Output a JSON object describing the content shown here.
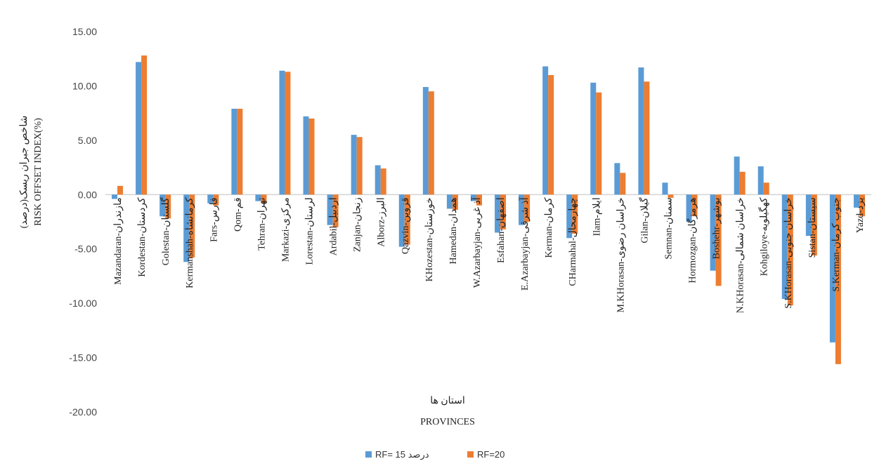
{
  "chart_data": {
    "type": "bar",
    "ylabel_fa": "شاخص جبران ریسک(درصد)",
    "ylabel_en": "RISK OFFSET INDEX(%)",
    "xlabel_fa": "استان ها",
    "xlabel_en": "PROVINCES",
    "ylim": [
      -20,
      15
    ],
    "yticks": [
      "15.00",
      "10.00",
      "5.00",
      "0.00",
      "-5.00",
      "-10.00",
      "-15.00",
      "-20.00"
    ],
    "legend_position": "bottom",
    "categories": [
      "Mazandaran-مازندران",
      "Kordestan-کردستان",
      "Golestan-گلستان",
      "Kermanshah-کرمانشاه",
      "Fars-فارس",
      "Qom-قم",
      "Tehran-تهران",
      "Markazi-مرکزی",
      "Lorestan-لرستان",
      "Ardabil-اردبیل",
      "Zanjan-زنجان",
      "Alborz-البرز",
      "Qazvin-قزوین",
      "KHozestan-خوزستان",
      "Hamedan-همدان",
      "W.Azarbayjan-آذ غربی",
      "Esfahan-اصفهان",
      "E.Azarbayjan-آذ شرقی",
      "Kerman-کرمان",
      "CHarmahal-چهارمحال",
      "Ilam-ایلام",
      "M.KHorasan-خراسان رضوی",
      "Gilan-گیلان",
      "Semnan-سمنان",
      "Hormozgan-هرمزگان",
      "Boshehr-بوشهر",
      "N.KHorasan-خراسان شمالی",
      "Kohgiloye-کهگیلویه",
      "S.KHorasan-خراسان جنوبی",
      "Sistan-سیستان",
      "S.Kerman-جنوب کرمان",
      "Yazd-یزد"
    ],
    "series": [
      {
        "name": "RF= 15 درصد",
        "color": "#5b9bd5",
        "values": [
          -0.4,
          12.2,
          -2.0,
          -6.2,
          -0.8,
          7.9,
          -0.6,
          11.4,
          7.2,
          -2.8,
          5.5,
          2.7,
          -4.8,
          9.9,
          -1.3,
          -0.6,
          -3.5,
          -2.8,
          11.8,
          -4.0,
          10.3,
          2.9,
          11.7,
          1.1,
          -2.5,
          -7.0,
          3.5,
          2.6,
          -9.6,
          -3.8,
          -13.6,
          -1.2
        ]
      },
      {
        "name": "RF=20",
        "color": "#ed7d31",
        "values": [
          0.8,
          12.8,
          -2.2,
          -5.8,
          -1.0,
          7.9,
          -0.8,
          11.3,
          7.0,
          -3.0,
          5.3,
          2.4,
          -4.6,
          9.5,
          -1.4,
          -1.0,
          -3.2,
          -2.5,
          11.0,
          -3.6,
          9.4,
          2.0,
          10.4,
          -0.3,
          -2.0,
          -8.4,
          2.1,
          1.1,
          -10.2,
          -5.6,
          -15.6,
          -2.0
        ]
      }
    ]
  }
}
